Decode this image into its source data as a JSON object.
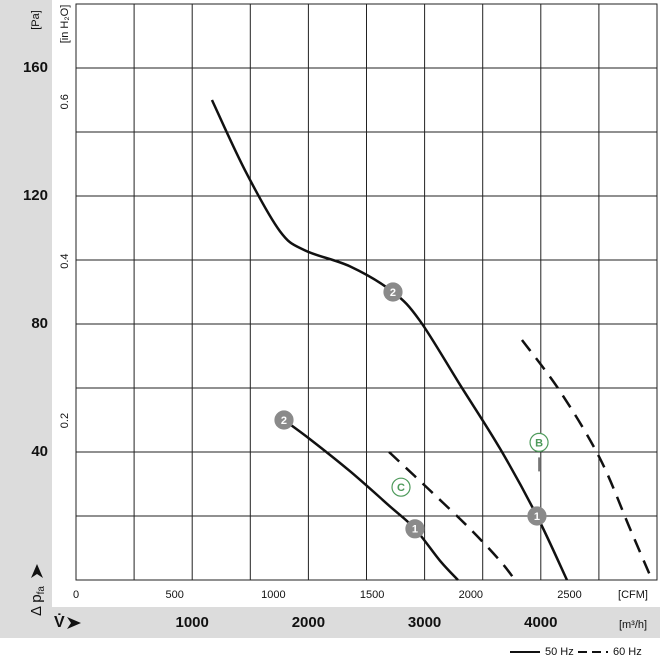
{
  "chart_data": {
    "type": "line",
    "x_unit_label": "[m³/h]",
    "x_symbol": "V̇",
    "x2_unit_label": "[CFM]",
    "y_unit_label": "[Pa]",
    "y2_unit_label": "[in H₂O]",
    "y_symbol": "Δ p",
    "y_symbol_sub": "fa",
    "xlim": [
      0,
      5000
    ],
    "xticks": [
      1000,
      2000,
      3000,
      4000
    ],
    "xgrid": [
      500,
      1000,
      1500,
      2000,
      2500,
      3000,
      3500,
      4000,
      4500
    ],
    "x2lim": [
      0,
      2943
    ],
    "x2ticks": [
      0,
      500,
      1000,
      1500,
      2000,
      2500
    ],
    "ylim": [
      0,
      180
    ],
    "yticks": [
      40,
      80,
      120,
      160
    ],
    "ygrid": [
      20,
      40,
      60,
      80,
      100,
      120,
      140,
      160
    ],
    "y2lim": [
      0,
      0.7226
    ],
    "y2ticks": [
      0.2,
      0.4,
      0.6
    ],
    "legend": [
      {
        "name": "50 Hz",
        "dashed": false
      },
      {
        "name": "60 Hz",
        "dashed": true
      }
    ],
    "series": [
      {
        "legend": 0,
        "x": [
          1170,
          1455,
          1755,
          1970,
          2358,
          2728,
          2960,
          3305,
          3650,
          3967,
          4225
        ],
        "values": [
          150,
          128,
          109,
          103,
          98,
          90,
          81,
          61,
          41,
          20,
          0
        ]
      },
      {
        "legend": 0,
        "x": [
          1790,
          2014,
          2358,
          2702,
          2917,
          3133,
          3287
        ],
        "values": [
          50,
          44,
          34,
          23,
          16,
          6,
          0
        ]
      },
      {
        "legend": 1,
        "x": [
          2694,
          3046,
          3391,
          3649,
          3778
        ],
        "values": [
          40,
          28,
          16,
          6,
          0
        ]
      },
      {
        "legend": 1,
        "x": [
          3838,
          4165,
          4509,
          4768,
          4957
        ],
        "values": [
          75,
          59,
          38,
          16,
          0
        ]
      }
    ],
    "markers": [
      {
        "label": "2",
        "x": 2728,
        "y": 90,
        "style": "filled"
      },
      {
        "label": "2",
        "x": 1790,
        "y": 50,
        "style": "filled"
      },
      {
        "label": "1",
        "x": 3967,
        "y": 20,
        "style": "filled"
      },
      {
        "label": "1",
        "x": 2917,
        "y": 16,
        "style": "filled"
      },
      {
        "label": "C",
        "x": 2797,
        "y": 29,
        "style": "outline"
      },
      {
        "label": "B",
        "x": 3985,
        "y": 43,
        "style": "outline"
      }
    ],
    "color": "#111111",
    "grid": true
  }
}
